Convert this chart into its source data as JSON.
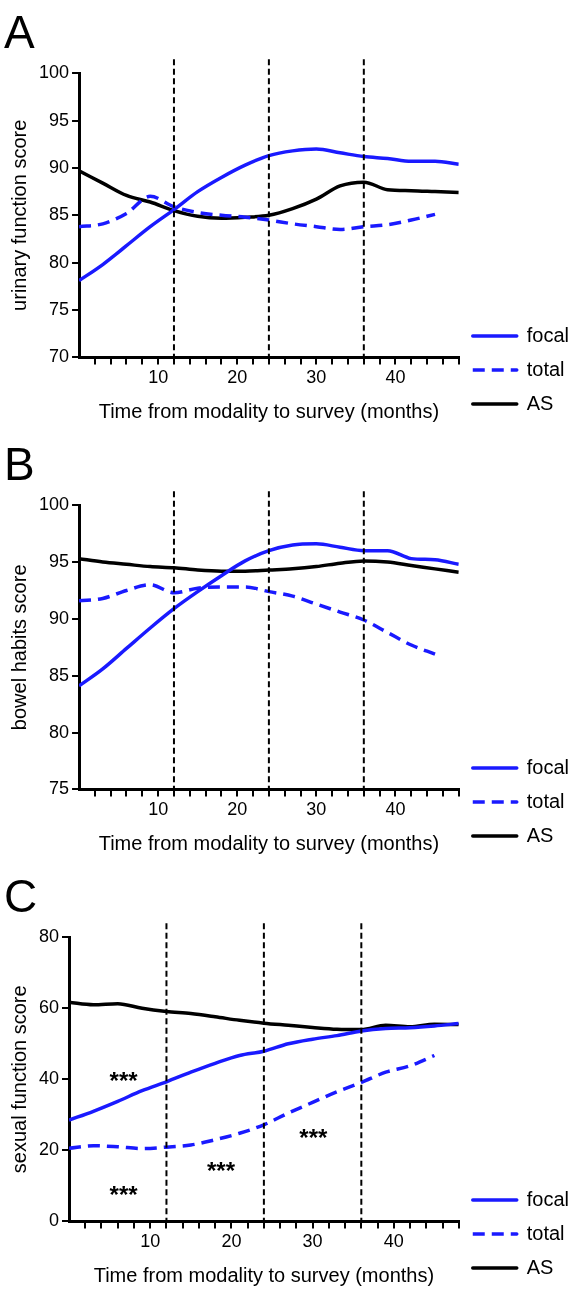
{
  "chart_data": [
    {
      "type": "line",
      "title": "A",
      "xlabel": "Time from modality to survey (months)",
      "ylabel": "urinary function score",
      "xlim": [
        0,
        48
      ],
      "ylim": [
        70,
        100
      ],
      "yticks": [
        70,
        75,
        80,
        85,
        90,
        95,
        100
      ],
      "xticks": [
        {
          "value": 2,
          "label": null
        },
        {
          "value": 4,
          "label": null
        },
        {
          "value": 6,
          "label": null
        },
        {
          "value": 8,
          "label": null
        },
        10,
        {
          "value": 12,
          "label": null
        },
        {
          "value": 14,
          "label": null
        },
        {
          "value": 16,
          "label": null
        },
        {
          "value": 18,
          "label": null
        },
        20,
        {
          "value": 22,
          "label": null
        },
        {
          "value": 24,
          "label": null
        },
        {
          "value": 26,
          "label": null
        },
        {
          "value": 28,
          "label": null
        },
        30,
        {
          "value": 32,
          "label": null
        },
        {
          "value": 34,
          "label": null
        },
        {
          "value": 36,
          "label": null
        },
        {
          "value": 38,
          "label": null
        },
        40,
        {
          "value": 42,
          "label": null
        },
        {
          "value": 44,
          "label": null
        },
        {
          "value": 46,
          "label": null
        },
        {
          "value": 48,
          "label": null
        }
      ],
      "legend": "right",
      "grid": false,
      "marker": "none",
      "ref_lines": [
        {
          "axis": "x",
          "value": 12,
          "color": "#000000",
          "line_style": "dashed"
        },
        {
          "axis": "x",
          "value": 24,
          "color": "#000000",
          "line_style": "dashed"
        },
        {
          "axis": "x",
          "value": 36,
          "color": "#000000",
          "line_style": "dashed"
        }
      ],
      "series": [
        {
          "name": "focal",
          "color": "#1a1aff",
          "line_style": "solid",
          "x": [
            0,
            3,
            6,
            9,
            12,
            15,
            18,
            21,
            24,
            27,
            30,
            33,
            36,
            39,
            42,
            45,
            48
          ],
          "values": [
            78.1,
            79.8,
            81.8,
            83.8,
            85.6,
            87.5,
            89.0,
            90.3,
            91.3,
            91.8,
            92.0,
            91.6,
            91.2,
            91.0,
            90.7,
            90.7,
            90.4
          ]
        },
        {
          "name": "total",
          "color": "#1a1aff",
          "line_style": "dashed",
          "x": [
            0,
            3,
            6,
            9,
            12,
            15,
            18,
            21,
            24,
            27,
            30,
            33,
            36,
            39,
            42,
            45
          ],
          "values": [
            83.8,
            84.1,
            85.2,
            87.0,
            85.9,
            85.3,
            85.0,
            84.8,
            84.5,
            84.1,
            83.8,
            83.5,
            83.8,
            84.0,
            84.5,
            85.1
          ]
        },
        {
          "name": "AS",
          "color": "#000000",
          "line_style": "solid",
          "x": [
            0,
            3,
            6,
            9,
            12,
            15,
            18,
            21,
            24,
            27,
            30,
            33,
            36,
            39,
            42,
            45,
            48
          ],
          "values": [
            89.7,
            88.4,
            87.1,
            86.4,
            85.5,
            84.9,
            84.7,
            84.8,
            85.0,
            85.7,
            86.7,
            88.1,
            88.5,
            87.7,
            87.6,
            87.5,
            87.4
          ]
        }
      ]
    },
    {
      "type": "line",
      "title": "B",
      "xlabel": "Time from modality to survey (months)",
      "ylabel": "bowel habits score",
      "xlim": [
        0,
        48
      ],
      "ylim": [
        75,
        100
      ],
      "yticks": [
        75,
        80,
        85,
        90,
        95,
        100
      ],
      "xticks": [
        {
          "value": 2,
          "label": null
        },
        {
          "value": 4,
          "label": null
        },
        {
          "value": 6,
          "label": null
        },
        {
          "value": 8,
          "label": null
        },
        10,
        {
          "value": 12,
          "label": null
        },
        {
          "value": 14,
          "label": null
        },
        {
          "value": 16,
          "label": null
        },
        {
          "value": 18,
          "label": null
        },
        20,
        {
          "value": 22,
          "label": null
        },
        {
          "value": 24,
          "label": null
        },
        {
          "value": 26,
          "label": null
        },
        {
          "value": 28,
          "label": null
        },
        30,
        {
          "value": 32,
          "label": null
        },
        {
          "value": 34,
          "label": null
        },
        {
          "value": 36,
          "label": null
        },
        {
          "value": 38,
          "label": null
        },
        40,
        {
          "value": 42,
          "label": null
        },
        {
          "value": 44,
          "label": null
        },
        {
          "value": 46,
          "label": null
        },
        {
          "value": 48,
          "label": null
        }
      ],
      "legend": "right",
      "grid": false,
      "marker": "none",
      "ref_lines": [
        {
          "axis": "x",
          "value": 12,
          "color": "#000000",
          "line_style": "dashed"
        },
        {
          "axis": "x",
          "value": 24,
          "color": "#000000",
          "line_style": "dashed"
        },
        {
          "axis": "x",
          "value": 36,
          "color": "#000000",
          "line_style": "dashed"
        }
      ],
      "series": [
        {
          "name": "focal",
          "color": "#1a1aff",
          "line_style": "solid",
          "x": [
            0,
            3,
            6,
            9,
            12,
            15,
            18,
            21,
            24,
            27,
            30,
            33,
            36,
            39,
            42,
            45,
            48
          ],
          "values": [
            84.1,
            85.6,
            87.4,
            89.2,
            90.9,
            92.4,
            93.8,
            95.1,
            96.0,
            96.5,
            96.6,
            96.3,
            96.0,
            96.0,
            95.3,
            95.2,
            94.8
          ]
        },
        {
          "name": "total",
          "color": "#1a1aff",
          "line_style": "dashed",
          "x": [
            0,
            3,
            6,
            9,
            12,
            15,
            18,
            21,
            24,
            27,
            30,
            33,
            36,
            39,
            42,
            45
          ],
          "values": [
            91.6,
            91.8,
            92.5,
            93.0,
            92.3,
            92.7,
            92.8,
            92.8,
            92.4,
            92.0,
            91.3,
            90.6,
            89.9,
            88.8,
            87.7,
            86.9
          ]
        },
        {
          "name": "AS",
          "color": "#000000",
          "line_style": "solid",
          "x": [
            0,
            3,
            6,
            9,
            12,
            15,
            18,
            21,
            24,
            27,
            30,
            33,
            36,
            39,
            42,
            45,
            48
          ],
          "values": [
            95.3,
            95.0,
            94.8,
            94.6,
            94.5,
            94.3,
            94.2,
            94.2,
            94.3,
            94.4,
            94.6,
            94.9,
            95.1,
            95.0,
            94.7,
            94.4,
            94.1
          ]
        }
      ]
    },
    {
      "type": "line",
      "title": "C",
      "xlabel": "Time from modality to survey (months)",
      "ylabel": "sexual function score",
      "xlim": [
        0,
        48
      ],
      "ylim": [
        0,
        80
      ],
      "yticks": [
        0,
        20,
        40,
        60,
        80
      ],
      "xticks": [
        {
          "value": 2,
          "label": null
        },
        {
          "value": 4,
          "label": null
        },
        {
          "value": 6,
          "label": null
        },
        {
          "value": 8,
          "label": null
        },
        10,
        {
          "value": 12,
          "label": null
        },
        {
          "value": 14,
          "label": null
        },
        {
          "value": 16,
          "label": null
        },
        {
          "value": 18,
          "label": null
        },
        20,
        {
          "value": 22,
          "label": null
        },
        {
          "value": 24,
          "label": null
        },
        {
          "value": 26,
          "label": null
        },
        {
          "value": 28,
          "label": null
        },
        30,
        {
          "value": 32,
          "label": null
        },
        {
          "value": 34,
          "label": null
        },
        {
          "value": 36,
          "label": null
        },
        {
          "value": 38,
          "label": null
        },
        40,
        {
          "value": 42,
          "label": null
        },
        {
          "value": 44,
          "label": null
        },
        {
          "value": 46,
          "label": null
        },
        {
          "value": 48,
          "label": null
        }
      ],
      "legend": "right",
      "grid": false,
      "marker": "none",
      "ref_lines": [
        {
          "axis": "x",
          "value": 12,
          "color": "#000000",
          "line_style": "dashed"
        },
        {
          "axis": "x",
          "value": 24,
          "color": "#000000",
          "line_style": "dashed"
        },
        {
          "axis": "x",
          "value": 36,
          "color": "#000000",
          "line_style": "dashed"
        }
      ],
      "annotations": [
        "***",
        "***",
        "***",
        "***"
      ],
      "series": [
        {
          "name": "focal",
          "color": "#1a1aff",
          "line_style": "solid",
          "x": [
            0,
            3,
            6,
            9,
            12,
            15,
            18,
            21,
            24,
            27,
            30,
            33,
            36,
            39,
            42,
            45,
            48
          ],
          "values": [
            28.5,
            31.0,
            33.8,
            36.8,
            39.3,
            42.0,
            44.5,
            46.7,
            47.9,
            50.0,
            51.3,
            52.3,
            53.6,
            54.3,
            54.5,
            55.0,
            55.7
          ]
        },
        {
          "name": "total",
          "color": "#1a1aff",
          "line_style": "dashed",
          "x": [
            0,
            3,
            6,
            9,
            12,
            15,
            18,
            21,
            24,
            27,
            30,
            33,
            36,
            39,
            42,
            45
          ],
          "values": [
            20.6,
            21.3,
            21.0,
            20.5,
            20.9,
            21.5,
            23.0,
            24.8,
            27.2,
            30.5,
            33.5,
            36.5,
            39.1,
            42.0,
            43.8,
            46.7
          ]
        },
        {
          "name": "AS",
          "color": "#000000",
          "line_style": "solid",
          "x": [
            0,
            3,
            6,
            9,
            12,
            15,
            18,
            21,
            24,
            27,
            30,
            33,
            36,
            39,
            42,
            45,
            48
          ],
          "values": [
            61.7,
            61.0,
            61.3,
            60.0,
            59.1,
            58.5,
            57.6,
            56.6,
            55.8,
            55.2,
            54.6,
            54.1,
            54.0,
            55.2,
            54.8,
            55.5,
            55.4
          ]
        }
      ]
    }
  ]
}
